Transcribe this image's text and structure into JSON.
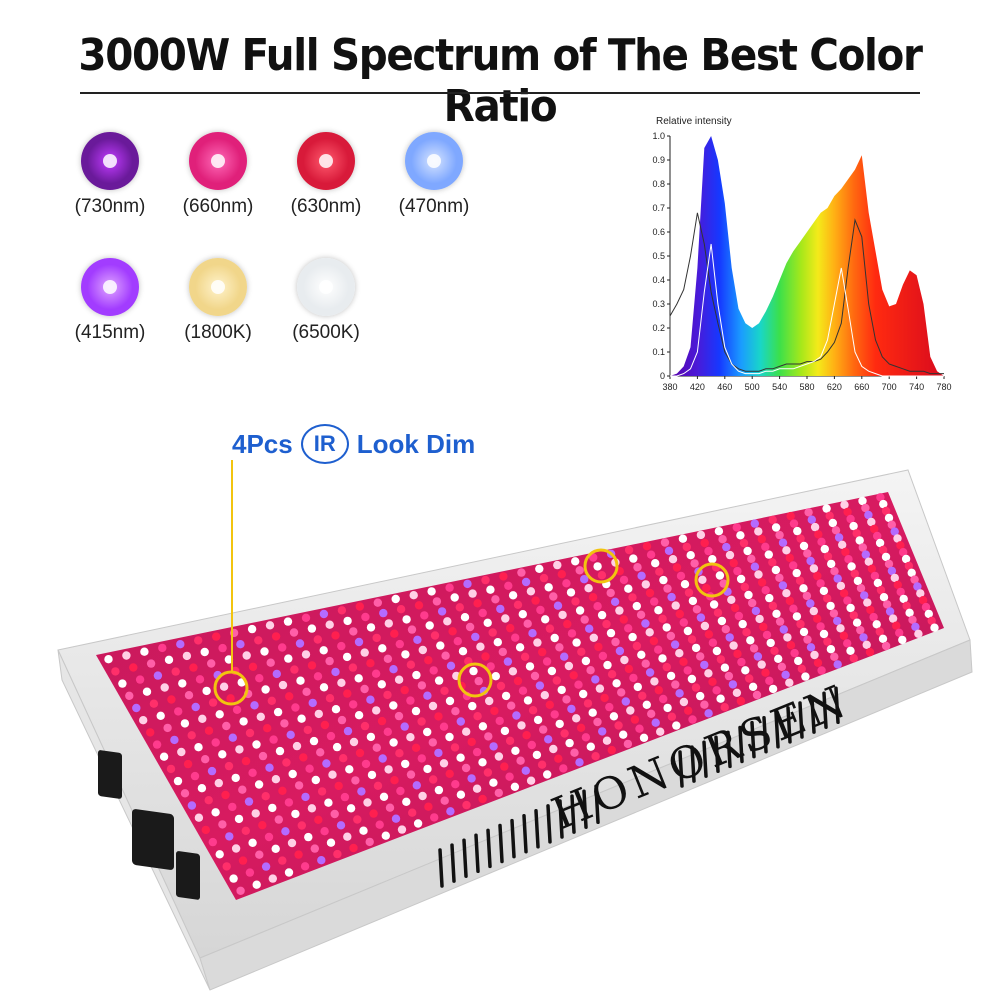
{
  "title": "3000W Full Spectrum of The Best Color Ratio",
  "leds": [
    {
      "label": "(730nm)",
      "color": "#6a1a9a",
      "glow": "#c23cff"
    },
    {
      "label": "(660nm)",
      "color": "#e0207a",
      "glow": "#ff6ab8"
    },
    {
      "label": "(630nm)",
      "color": "#d81a3a",
      "glow": "#ff5a6e"
    },
    {
      "label": "(470nm)",
      "color": "#7fa8ff",
      "glow": "#d6e4ff"
    },
    {
      "label": "(415nm)",
      "color": "#a23cff",
      "glow": "#e0a6ff"
    },
    {
      "label": "(1800K)",
      "color": "#f1d68a",
      "glow": "#fff3cc"
    },
    {
      "label": "(6500K)",
      "color": "#e8ecef",
      "glow": "#ffffff"
    }
  ],
  "chart": {
    "ylabel": "Relative intensity",
    "yticks": [
      "0",
      "0.1",
      "0.2",
      "0.3",
      "0.4",
      "0.5",
      "0.6",
      "0.7",
      "0.8",
      "0.9",
      "1.0"
    ],
    "xticks": [
      "380",
      "420",
      "460",
      "500",
      "540",
      "580",
      "620",
      "660",
      "700",
      "740",
      "780"
    ]
  },
  "chart_data": {
    "type": "area",
    "ylabel": "Relative intensity",
    "xlim": [
      380,
      780
    ],
    "ylim": [
      0,
      1.0
    ],
    "x": [
      380,
      390,
      400,
      410,
      420,
      430,
      440,
      450,
      460,
      470,
      480,
      490,
      500,
      510,
      520,
      530,
      540,
      550,
      560,
      570,
      580,
      590,
      600,
      610,
      620,
      630,
      640,
      650,
      660,
      670,
      680,
      690,
      700,
      710,
      720,
      730,
      740,
      750,
      760,
      770,
      780
    ],
    "series": [
      {
        "values": [
          0,
          0.01,
          0.04,
          0.12,
          0.45,
          0.95,
          1.0,
          0.9,
          0.72,
          0.45,
          0.28,
          0.22,
          0.2,
          0.22,
          0.27,
          0.33,
          0.4,
          0.47,
          0.52,
          0.56,
          0.6,
          0.64,
          0.68,
          0.7,
          0.75,
          0.78,
          0.82,
          0.86,
          0.92,
          0.68,
          0.52,
          0.36,
          0.29,
          0.3,
          0.38,
          0.44,
          0.42,
          0.3,
          0.08,
          0.02,
          0
        ]
      },
      {
        "values": [
          0.25,
          0.3,
          0.36,
          0.5,
          0.68,
          0.55,
          0.35,
          0.22,
          0.1,
          0.05,
          0.03,
          0.02,
          0.02,
          0.02,
          0.03,
          0.03,
          0.04,
          0.05,
          0.05,
          0.05,
          0.06,
          0.06,
          0.07,
          0.1,
          0.14,
          0.22,
          0.45,
          0.65,
          0.58,
          0.3,
          0.15,
          0.08,
          0.05,
          0.04,
          0.03,
          0.02,
          0.02,
          0.02,
          0.01,
          0.01,
          0.01
        ]
      },
      {
        "values": [
          0,
          0,
          0.01,
          0.03,
          0.1,
          0.35,
          0.55,
          0.3,
          0.12,
          0.05,
          0.02,
          0.01,
          0.01,
          0.01,
          0.02,
          0.02,
          0.03,
          0.03,
          0.03,
          0.04,
          0.05,
          0.06,
          0.08,
          0.15,
          0.3,
          0.45,
          0.28,
          0.1,
          0.04,
          0.02,
          0.01,
          0,
          0,
          0,
          0,
          0,
          0,
          0,
          0,
          0,
          0
        ]
      }
    ]
  },
  "callout": {
    "count_text": "4Pcs",
    "badge_text": "IR",
    "suffix_text": "Look Dim"
  },
  "brand": "HONORSEN"
}
